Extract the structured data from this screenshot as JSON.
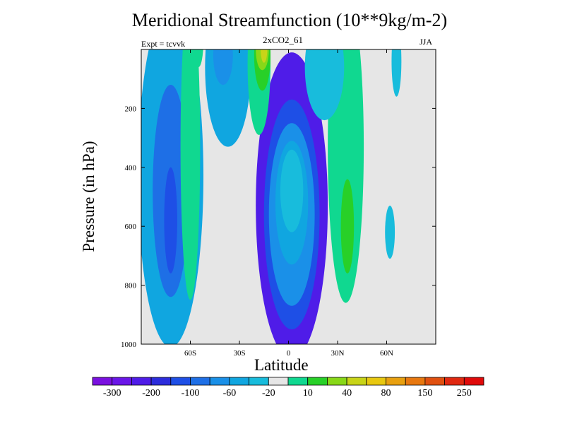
{
  "chart_data": {
    "type": "heatmap",
    "title": "Meridional Streamfunction (10**9kg/m-2)",
    "subtitle": "2xCO2_61",
    "left_label": "Expt = tcvvk",
    "right_label": "JJA",
    "xlabel": "Latitude",
    "ylabel": "Pressure (in hPa)",
    "xlim": [
      -90,
      90
    ],
    "ylim": [
      0,
      1000
    ],
    "y_reversed": true,
    "x_ticks": [
      {
        "value": -60,
        "label": "60S"
      },
      {
        "value": -30,
        "label": "30S"
      },
      {
        "value": 0,
        "label": "0"
      },
      {
        "value": 30,
        "label": "30N"
      },
      {
        "value": 60,
        "label": "60N"
      }
    ],
    "y_ticks": [
      {
        "value": 200,
        "label": "200"
      },
      {
        "value": 400,
        "label": "400"
      },
      {
        "value": 600,
        "label": "600"
      },
      {
        "value": 800,
        "label": "800"
      },
      {
        "value": 1000,
        "label": "1000"
      }
    ],
    "colorbar": {
      "colors": [
        "#7a10e0",
        "#6a16e8",
        "#4f1ce8",
        "#2c2cdc",
        "#1e4fe6",
        "#1e6fe6",
        "#1a90e8",
        "#10a6e0",
        "#18bcdc",
        "#e6e6e6",
        "#10d890",
        "#28d028",
        "#88d818",
        "#c8d418",
        "#e8c810",
        "#e8a010",
        "#e87810",
        "#e05010",
        "#e02810",
        "#e00a0a"
      ],
      "labels": [
        "-300",
        "-200",
        "-100",
        "-60",
        "-20",
        "10",
        "40",
        "80",
        "150",
        "250"
      ],
      "label_after_box": [
        0,
        2,
        4,
        6,
        8,
        10,
        12,
        14,
        16,
        18
      ]
    },
    "fields": [
      {
        "level": 2,
        "center": [
          2,
          530
        ],
        "radius": [
          22,
          520
        ]
      },
      {
        "level": 4,
        "center": [
          2,
          560
        ],
        "radius": [
          17,
          390
        ]
      },
      {
        "level": 6,
        "center": [
          2,
          560
        ],
        "radius": [
          14,
          310
        ]
      },
      {
        "level": 7,
        "center": [
          2,
          520
        ],
        "radius": [
          10,
          210
        ]
      },
      {
        "level": 8,
        "center": [
          2,
          480
        ],
        "radius": [
          7,
          140
        ]
      },
      {
        "level": 7,
        "center": [
          -72,
          430
        ],
        "radius": [
          20,
          580
        ]
      },
      {
        "level": 5,
        "center": [
          -72,
          480
        ],
        "radius": [
          11,
          360
        ]
      },
      {
        "level": 4,
        "center": [
          -72,
          580
        ],
        "radius": [
          4,
          180
        ]
      },
      {
        "level": 7,
        "center": [
          -37,
          60
        ],
        "radius": [
          14,
          270
        ]
      },
      {
        "level": 6,
        "center": [
          -40,
          20
        ],
        "radius": [
          6,
          100
        ]
      },
      {
        "level": 10,
        "center": [
          -60,
          330
        ],
        "radius": [
          6,
          520
        ]
      },
      {
        "level": 10,
        "center": [
          -18,
          50
        ],
        "radius": [
          7,
          240
        ]
      },
      {
        "level": 11,
        "center": [
          -16,
          20
        ],
        "radius": [
          5,
          120
        ]
      },
      {
        "level": 12,
        "center": [
          -16,
          0
        ],
        "radius": [
          4,
          70
        ]
      },
      {
        "level": 13,
        "center": [
          -15,
          0
        ],
        "radius": [
          2,
          45
        ]
      },
      {
        "level": 10,
        "center": [
          35,
          330
        ],
        "radius": [
          11,
          530
        ]
      },
      {
        "level": 11,
        "center": [
          36,
          600
        ],
        "radius": [
          4,
          160
        ]
      },
      {
        "level": 10,
        "center": [
          -55,
          -30
        ],
        "radius": [
          3,
          90
        ]
      },
      {
        "level": 8,
        "center": [
          62,
          620
        ],
        "radius": [
          3,
          90
        ]
      },
      {
        "level": 8,
        "center": [
          66,
          40
        ],
        "radius": [
          3,
          120
        ]
      },
      {
        "level": 8,
        "center": [
          22,
          60
        ],
        "radius": [
          12,
          180
        ]
      }
    ]
  }
}
